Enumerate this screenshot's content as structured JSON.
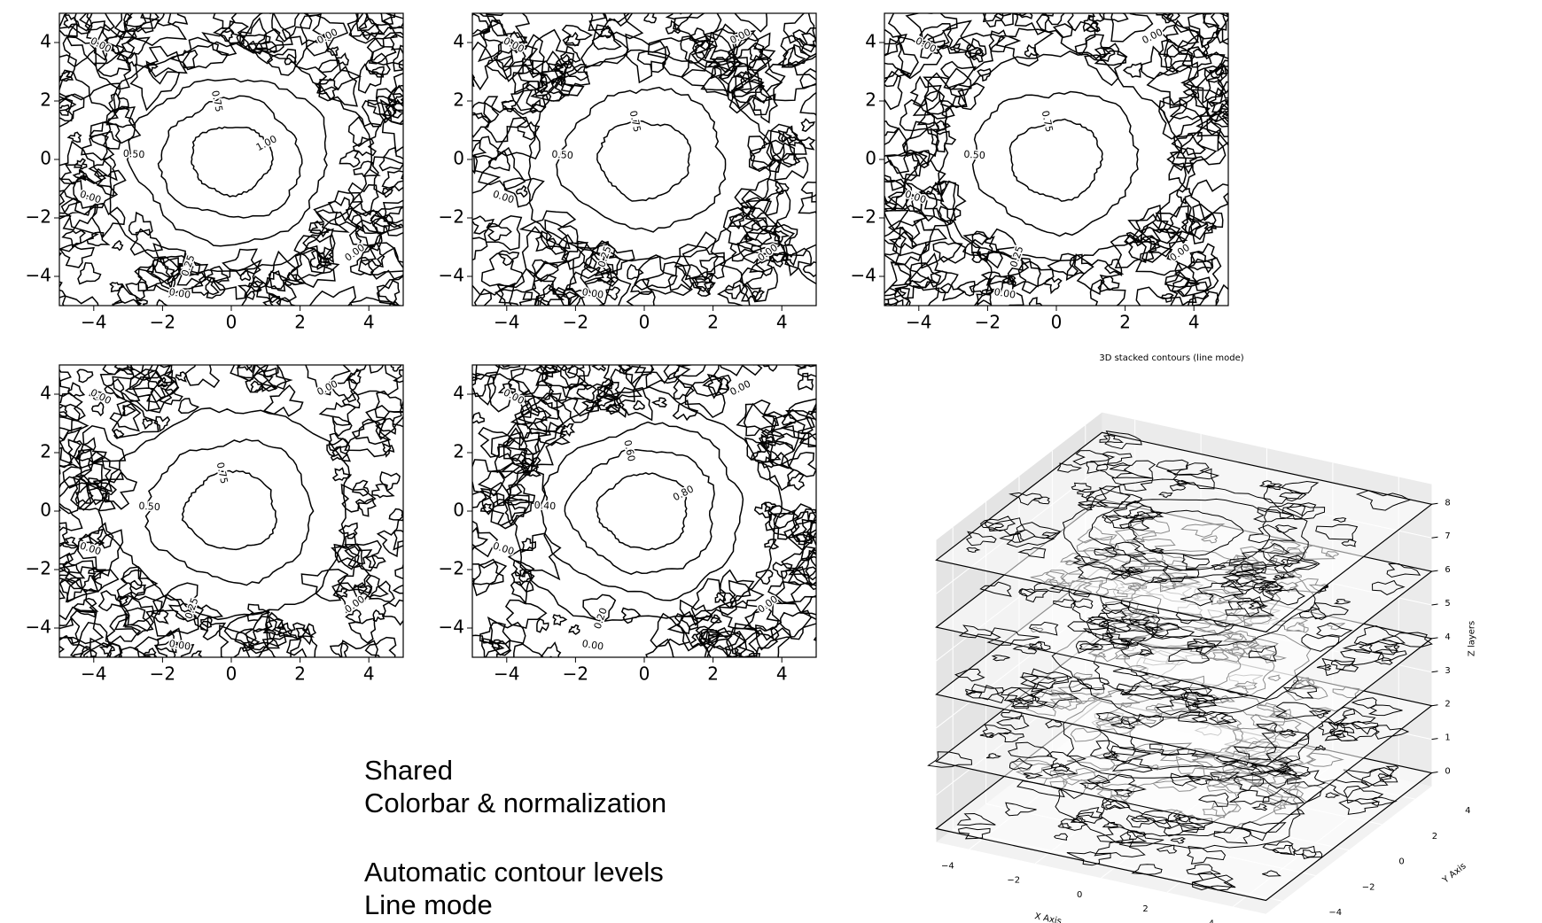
{
  "chart_data": [
    {
      "type": "contour",
      "xlim": [
        -5,
        5
      ],
      "ylim": [
        -5,
        5
      ],
      "xticks": [
        {
          "value": -4,
          "label": "−4"
        },
        {
          "value": -2,
          "label": "−2"
        },
        0,
        2,
        4
      ],
      "yticks": [
        {
          "value": -4,
          "label": "−4"
        },
        {
          "value": -2,
          "label": "−2"
        },
        0,
        2,
        4
      ],
      "levels": [
        {
          "value": 0,
          "label": "0.00"
        },
        {
          "value": 0.25,
          "label": "0.25"
        },
        {
          "value": 0.5,
          "label": "0.50"
        },
        {
          "value": 0.75,
          "label": "0.75"
        },
        {
          "value": 1,
          "label": "1.00"
        }
      ],
      "color": "#000000"
    },
    {
      "type": "contour",
      "xlim": [
        -5,
        5
      ],
      "ylim": [
        -5,
        5
      ],
      "xticks": [
        {
          "value": -4,
          "label": "−4"
        },
        {
          "value": -2,
          "label": "−2"
        },
        0,
        2,
        4
      ],
      "yticks": [
        {
          "value": -4,
          "label": "−4"
        },
        {
          "value": -2,
          "label": "−2"
        },
        0,
        2,
        4
      ],
      "levels": [
        {
          "value": 0,
          "label": "0.00"
        },
        {
          "value": 0.25,
          "label": "0.25"
        },
        {
          "value": 0.5,
          "label": "0.50"
        },
        {
          "value": 0.75,
          "label": "0.75"
        }
      ],
      "color": "#000000"
    },
    {
      "type": "contour",
      "xlim": [
        -5,
        5
      ],
      "ylim": [
        -5,
        5
      ],
      "xticks": [
        {
          "value": -4,
          "label": "−4"
        },
        {
          "value": -2,
          "label": "−2"
        },
        0,
        2,
        4
      ],
      "yticks": [
        {
          "value": -4,
          "label": "−4"
        },
        {
          "value": -2,
          "label": "−2"
        },
        0,
        2,
        4
      ],
      "levels": [
        {
          "value": 0,
          "label": "0.00"
        },
        {
          "value": 0.25,
          "label": "0.25"
        },
        {
          "value": 0.5,
          "label": "0.50"
        },
        {
          "value": 0.75,
          "label": "0.75"
        }
      ],
      "color": "#000000"
    },
    {
      "type": "contour",
      "xlim": [
        -5,
        5
      ],
      "ylim": [
        -5,
        5
      ],
      "xticks": [
        {
          "value": -4,
          "label": "−4"
        },
        {
          "value": -2,
          "label": "−2"
        },
        0,
        2,
        4
      ],
      "yticks": [
        {
          "value": -4,
          "label": "−4"
        },
        {
          "value": -2,
          "label": "−2"
        },
        0,
        2,
        4
      ],
      "levels": [
        {
          "value": 0,
          "label": "0.00"
        },
        {
          "value": 0.25,
          "label": "0.25"
        },
        {
          "value": 0.5,
          "label": "0.50"
        },
        {
          "value": 0.75,
          "label": "0.75"
        }
      ],
      "color": "#000000"
    },
    {
      "type": "contour",
      "xlim": [
        -5,
        5
      ],
      "ylim": [
        -5,
        5
      ],
      "xticks": [
        {
          "value": -4,
          "label": "−4"
        },
        {
          "value": -2,
          "label": "−2"
        },
        0,
        2,
        4
      ],
      "yticks": [
        {
          "value": -4,
          "label": "−4"
        },
        {
          "value": -2,
          "label": "−2"
        },
        0,
        2,
        4
      ],
      "levels": [
        {
          "value": 0,
          "label": "0.00"
        },
        {
          "value": 0.2,
          "label": "0.20"
        },
        {
          "value": 0.4,
          "label": "0.40"
        },
        {
          "value": 0.6,
          "label": "0.60"
        },
        {
          "value": 0.8,
          "label": "0.80"
        }
      ],
      "color": "#000000"
    },
    {
      "type": "contour3d",
      "title": "3D stacked contours (line mode)",
      "xlabel": "X Axis",
      "ylabel": "Y Axis",
      "zlabel": "Z layers",
      "xlim": [
        -5,
        5
      ],
      "ylim": [
        -5,
        5
      ],
      "zlim": [
        0,
        8
      ],
      "xticks": [
        {
          "value": -4,
          "label": "−4"
        },
        {
          "value": -2,
          "label": "−2"
        },
        0,
        2,
        4
      ],
      "yticks": [
        {
          "value": -4,
          "label": "−4"
        },
        {
          "value": -2,
          "label": "−2"
        },
        0,
        2,
        4
      ],
      "zticks": [
        0,
        1,
        2,
        3,
        4,
        5,
        6,
        7,
        8
      ],
      "layers": [
        0,
        2,
        4,
        6,
        8
      ],
      "color": "#000000"
    }
  ],
  "notes": [
    [
      "Shared",
      "Colorbar & normalization"
    ],
    [
      "Automatic contour levels",
      "Line mode"
    ]
  ]
}
